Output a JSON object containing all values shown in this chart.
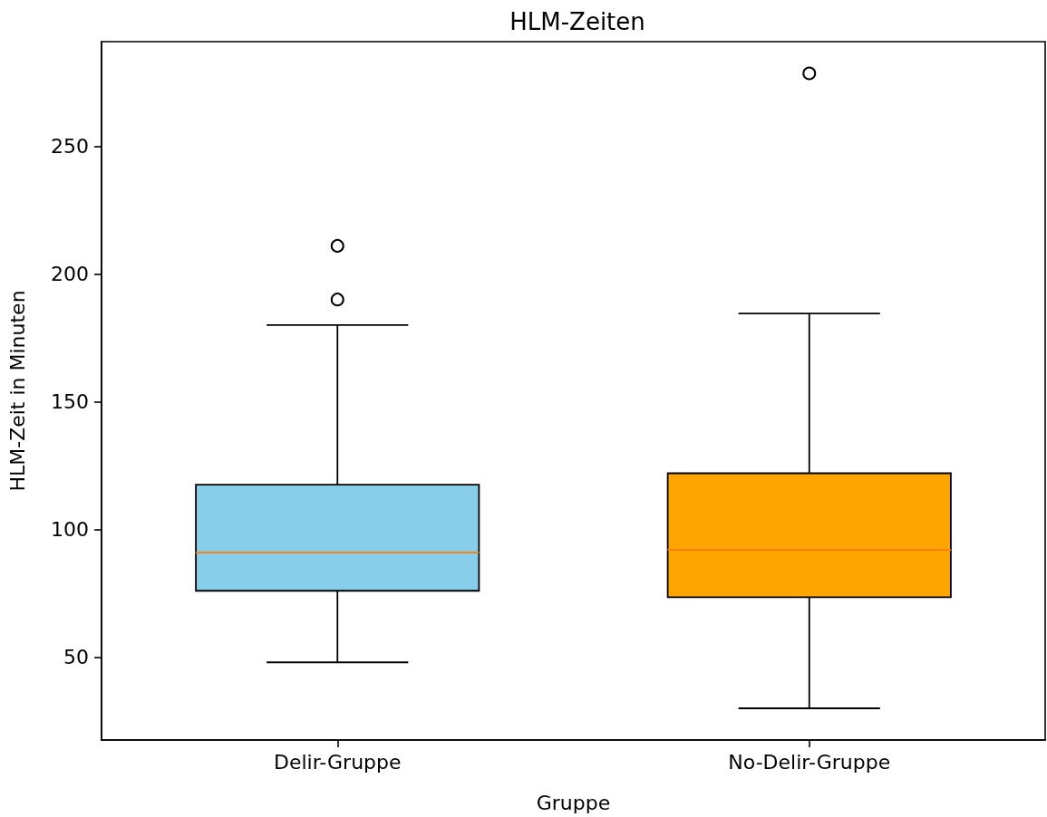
{
  "chart_data": {
    "type": "box",
    "title": "HLM-Zeiten",
    "xlabel": "Gruppe",
    "ylabel": "HLM-Zeit in Minuten",
    "categories": [
      "Delir-Gruppe",
      "No-Delir-Gruppe"
    ],
    "boxes": [
      {
        "low": 48,
        "q1": 76,
        "median": 91,
        "q3": 117.5,
        "high": 180,
        "outliers": [
          190,
          211
        ]
      },
      {
        "low": 30,
        "q1": 73.5,
        "median": 92,
        "q3": 122,
        "high": 184.5,
        "outliers": [
          278.5
        ]
      }
    ],
    "colors": [
      "#87ceeb",
      "#ffa500"
    ],
    "ylim": [
      17.6,
      290.9
    ],
    "yticks": [
      50,
      100,
      150,
      200,
      250
    ]
  }
}
